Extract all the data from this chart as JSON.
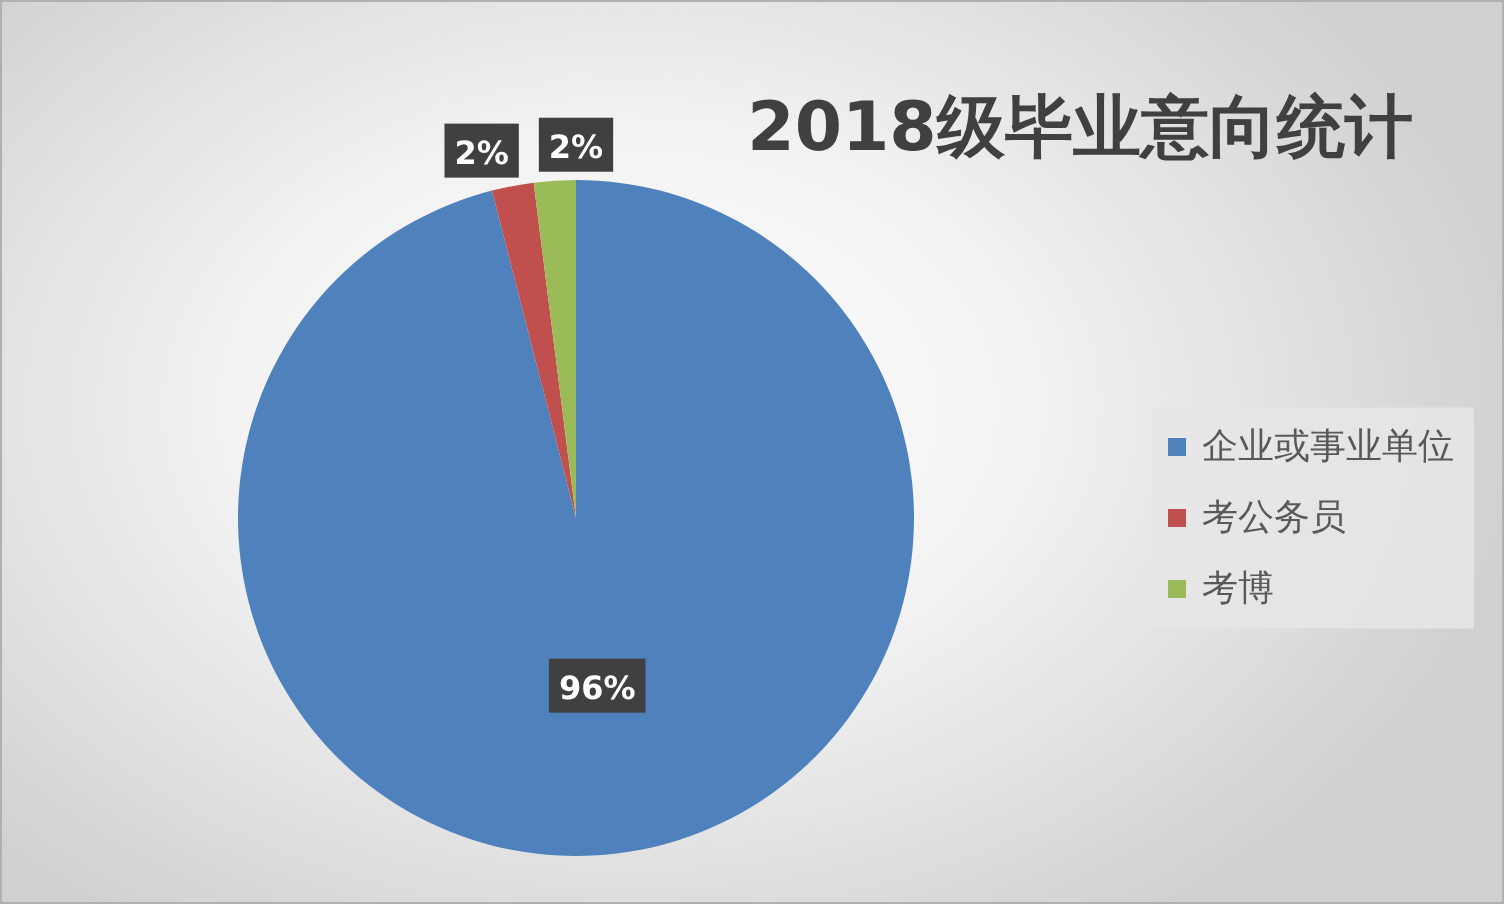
{
  "chart_data": {
    "type": "pie",
    "title": "2018级毕业意向统计",
    "categories": [
      "企业或事业单位",
      "考公务员",
      "考博"
    ],
    "values": [
      96,
      2,
      2
    ],
    "colors": [
      "#4f81bd",
      "#c0504d",
      "#9bbb59"
    ],
    "value_labels": [
      "96%",
      "2%",
      "2%"
    ],
    "legend": "right"
  }
}
